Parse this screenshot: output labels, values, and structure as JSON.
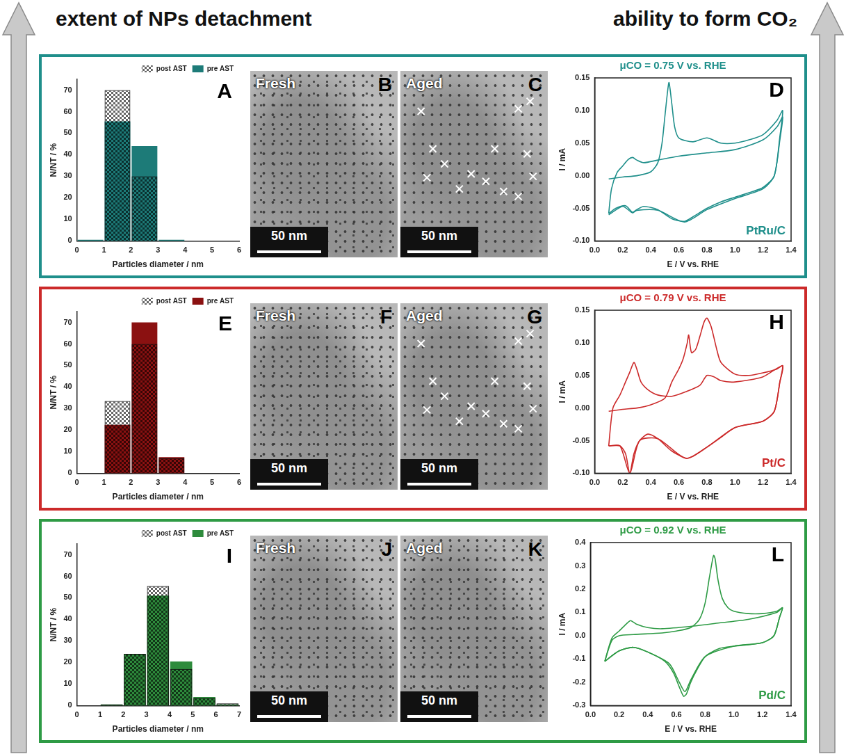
{
  "header": {
    "left": "extent of NPs detachment",
    "right": "ability to form CO₂"
  },
  "chart_data": [
    {
      "type": "histogram",
      "panel_letter": "A",
      "bins": [
        0,
        1,
        2,
        3,
        4,
        5,
        6
      ],
      "series": [
        {
          "name": "pre AST",
          "color": "#1d7b78",
          "values": [
            0.5,
            55.5,
            44,
            0.5,
            0,
            0
          ]
        },
        {
          "name": "post AST",
          "color": "#000000",
          "values": [
            0,
            70,
            30,
            0,
            0,
            0
          ]
        }
      ],
      "xlabel": "Particles diameter / nm",
      "ylabel": "N/NT / %",
      "xlim": [
        0,
        6
      ],
      "xticks": [
        0,
        1,
        2,
        3,
        4,
        5,
        6
      ],
      "ylim": [
        0,
        75
      ],
      "yticks": [
        0,
        10,
        20,
        30,
        40,
        50,
        60,
        70
      ],
      "grid": false,
      "legend": "top right"
    },
    {
      "type": "line",
      "panel_letter": "D",
      "title": "μCO = 0.75 V vs. RHE",
      "annotations": [
        "PtRu/C"
      ],
      "xlabel": "E / V vs. RHE",
      "ylabel": "I / mA",
      "xlim": [
        0,
        1.4
      ],
      "xticks": [
        {
          "value": 0,
          "label": "0.0"
        },
        0.2,
        0.4,
        0.6,
        0.8,
        {
          "value": 1,
          "label": "1.0"
        },
        1.2,
        1.4
      ],
      "ylim": [
        -0.1,
        0.15
      ],
      "yticks": [
        {
          "value": -0.1,
          "label": "-0.10"
        },
        -0.05,
        {
          "value": 0,
          "label": "0.00"
        },
        0.05,
        {
          "value": 0.1,
          "label": "0.10"
        },
        0.15
      ],
      "grid": false,
      "series": [
        {
          "color": "#1f8f8b",
          "x": [
            0.1,
            0.2,
            0.3,
            0.4,
            0.45,
            0.48,
            0.5,
            0.52,
            0.53,
            0.55,
            0.57,
            0.6,
            0.7,
            0.8,
            0.9,
            1.0,
            1.1,
            1.2,
            1.3,
            1.34,
            1.32,
            1.28,
            1.2,
            1.1,
            1.0,
            0.9,
            0.8,
            0.7,
            0.64,
            0.55,
            0.45,
            0.35,
            0.3,
            0.27,
            0.22,
            0.15,
            0.1
          ],
          "values": [
            -0.005,
            -0.002,
            0.0,
            0.006,
            0.02,
            0.05,
            0.09,
            0.13,
            0.143,
            0.11,
            0.075,
            0.058,
            0.052,
            0.058,
            0.05,
            0.05,
            0.055,
            0.063,
            0.085,
            0.1,
            0.06,
            0.0,
            -0.018,
            -0.026,
            -0.033,
            -0.04,
            -0.05,
            -0.063,
            -0.07,
            -0.066,
            -0.052,
            -0.047,
            -0.052,
            -0.056,
            -0.046,
            -0.05,
            -0.058
          ]
        },
        {
          "color": "#1f8f8b",
          "x": [
            0.1,
            0.12,
            0.16,
            0.2,
            0.24,
            0.27,
            0.3,
            0.35,
            0.45,
            0.6,
            0.8,
            1.0,
            1.2,
            1.3,
            1.34,
            1.32,
            1.28,
            1.2,
            1.0,
            0.8,
            0.64,
            0.45,
            0.3,
            0.27,
            0.2,
            0.1
          ],
          "values": [
            -0.058,
            -0.02,
            0.005,
            0.015,
            0.025,
            0.028,
            0.024,
            0.02,
            0.024,
            0.03,
            0.035,
            0.04,
            0.055,
            0.075,
            0.09,
            0.055,
            0.0,
            -0.02,
            -0.035,
            -0.052,
            -0.071,
            -0.053,
            -0.053,
            -0.057,
            -0.047,
            -0.06
          ]
        }
      ]
    },
    {
      "type": "histogram",
      "panel_letter": "E",
      "bins": [
        0,
        1,
        2,
        3,
        4,
        5,
        6
      ],
      "series": [
        {
          "name": "pre AST",
          "color": "#8b1111",
          "values": [
            0,
            22.5,
            70,
            7.5,
            0,
            0
          ]
        },
        {
          "name": "post AST",
          "color": "#000000",
          "values": [
            0,
            33.5,
            60,
            7,
            0,
            0
          ]
        }
      ],
      "xlabel": "Particles diameter / nm",
      "ylabel": "N/NT / %",
      "xlim": [
        0,
        6
      ],
      "xticks": [
        0,
        1,
        2,
        3,
        4,
        5,
        6
      ],
      "ylim": [
        0,
        75
      ],
      "yticks": [
        0,
        10,
        20,
        30,
        40,
        50,
        60,
        70
      ],
      "grid": false,
      "legend": "top right"
    },
    {
      "type": "line",
      "panel_letter": "H",
      "title": "μCO = 0.79 V vs. RHE",
      "annotations": [
        "Pt/C"
      ],
      "xlabel": "E / V vs. RHE",
      "ylabel": "I / mA",
      "xlim": [
        0,
        1.4
      ],
      "xticks": [
        {
          "value": 0,
          "label": "0.0"
        },
        0.2,
        0.4,
        0.6,
        0.8,
        {
          "value": 1,
          "label": "1.0"
        },
        1.2,
        1.4
      ],
      "ylim": [
        -0.1,
        0.15
      ],
      "yticks": [
        {
          "value": -0.1,
          "label": "-0.10"
        },
        -0.05,
        {
          "value": 0,
          "label": "0.00"
        },
        0.05,
        {
          "value": 0.1,
          "label": "0.10"
        },
        0.15
      ],
      "grid": false,
      "series": [
        {
          "color": "#cc2a2a",
          "x": [
            0.1,
            0.2,
            0.3,
            0.4,
            0.5,
            0.55,
            0.6,
            0.63,
            0.66,
            0.67,
            0.69,
            0.72,
            0.75,
            0.78,
            0.8,
            0.83,
            0.87,
            0.9,
            1.0,
            1.1,
            1.2,
            1.3,
            1.34,
            1.32,
            1.28,
            1.2,
            1.0,
            0.9,
            0.8,
            0.7,
            0.65,
            0.55,
            0.45,
            0.38,
            0.32,
            0.28,
            0.25,
            0.22,
            0.18,
            0.1
          ],
          "values": [
            -0.005,
            -0.002,
            0.0,
            0.005,
            0.015,
            0.04,
            0.06,
            0.075,
            0.1,
            0.112,
            0.085,
            0.09,
            0.11,
            0.132,
            0.138,
            0.125,
            0.09,
            0.07,
            0.052,
            0.05,
            0.054,
            0.06,
            0.065,
            0.04,
            -0.005,
            -0.02,
            -0.03,
            -0.045,
            -0.06,
            -0.074,
            -0.077,
            -0.066,
            -0.047,
            -0.04,
            -0.05,
            -0.07,
            -0.1,
            -0.07,
            -0.058,
            -0.058
          ]
        },
        {
          "color": "#cc2a2a",
          "x": [
            0.1,
            0.13,
            0.18,
            0.22,
            0.25,
            0.28,
            0.3,
            0.33,
            0.38,
            0.45,
            0.55,
            0.65,
            0.75,
            0.8,
            0.85,
            0.9,
            1.0,
            1.2,
            1.34,
            1.32,
            1.28,
            1.2,
            1.0,
            0.8,
            0.65,
            0.45,
            0.32,
            0.25,
            0.18,
            0.1
          ],
          "values": [
            -0.058,
            0.0,
            0.02,
            0.04,
            0.055,
            0.07,
            0.06,
            0.04,
            0.028,
            0.02,
            0.018,
            0.025,
            0.035,
            0.05,
            0.048,
            0.042,
            0.04,
            0.048,
            0.065,
            0.04,
            -0.005,
            -0.02,
            -0.03,
            -0.06,
            -0.077,
            -0.047,
            -0.05,
            -0.1,
            -0.058,
            -0.058
          ]
        }
      ]
    },
    {
      "type": "histogram",
      "panel_letter": "I",
      "bins": [
        0,
        1,
        2,
        3,
        4,
        5,
        6,
        7
      ],
      "series": [
        {
          "name": "pre AST",
          "color": "#2e8b3c",
          "values": [
            0,
            0.5,
            24,
            51,
            20.5,
            4,
            0.5
          ]
        },
        {
          "name": "post AST",
          "color": "#000000",
          "values": [
            0,
            0.5,
            24,
            55.5,
            17,
            3.5,
            1
          ]
        }
      ],
      "xlabel": "Particles diameter / nm",
      "ylabel": "N/NT / %",
      "xlim": [
        0,
        7
      ],
      "xticks": [
        0,
        1,
        2,
        3,
        4,
        5,
        6,
        7
      ],
      "ylim": [
        0,
        75
      ],
      "yticks": [
        0,
        10,
        20,
        30,
        40,
        50,
        60,
        70
      ],
      "grid": false,
      "legend": "top right"
    },
    {
      "type": "line",
      "panel_letter": "L",
      "title": "μCO = 0.92 V vs. RHE",
      "annotations": [
        "Pd/C"
      ],
      "xlabel": "E / V vs. RHE",
      "ylabel": "I / mA",
      "xlim": [
        0,
        1.4
      ],
      "xticks": [
        {
          "value": 0,
          "label": "0.0"
        },
        0.2,
        0.4,
        0.6,
        0.8,
        {
          "value": 1,
          "label": "1.0"
        },
        1.2,
        1.4
      ],
      "ylim": [
        -0.3,
        0.4
      ],
      "yticks": [
        -0.3,
        -0.2,
        -0.1,
        {
          "value": 0,
          "label": "0.0"
        },
        0.1,
        0.2,
        0.3,
        0.4
      ],
      "grid": false,
      "series": [
        {
          "color": "#2e9b45",
          "x": [
            0.1,
            0.15,
            0.2,
            0.3,
            0.5,
            0.6,
            0.7,
            0.76,
            0.8,
            0.83,
            0.85,
            0.86,
            0.87,
            0.89,
            0.92,
            0.96,
            1.0,
            1.1,
            1.2,
            1.3,
            1.34,
            1.32,
            1.28,
            1.2,
            1.0,
            0.9,
            0.8,
            0.74,
            0.7,
            0.67,
            0.65,
            0.62,
            0.58,
            0.52,
            0.4,
            0.3,
            0.2,
            0.1
          ],
          "values": [
            -0.11,
            -0.02,
            0.0,
            0.005,
            0.012,
            0.02,
            0.035,
            0.07,
            0.14,
            0.25,
            0.32,
            0.345,
            0.33,
            0.24,
            0.16,
            0.12,
            0.105,
            0.095,
            0.095,
            0.105,
            0.12,
            0.08,
            0.0,
            -0.03,
            -0.045,
            -0.055,
            -0.09,
            -0.15,
            -0.2,
            -0.25,
            -0.26,
            -0.22,
            -0.16,
            -0.11,
            -0.07,
            -0.05,
            -0.065,
            -0.11
          ]
        },
        {
          "color": "#2e9b45",
          "x": [
            0.1,
            0.15,
            0.2,
            0.25,
            0.28,
            0.32,
            0.4,
            0.5,
            0.7,
            0.9,
            1.1,
            1.3,
            1.34,
            1.32,
            1.28,
            1.2,
            1.0,
            0.8,
            0.7,
            0.66,
            0.62,
            0.55,
            0.4,
            0.3,
            0.2,
            0.1
          ],
          "values": [
            -0.11,
            -0.01,
            0.02,
            0.05,
            0.065,
            0.05,
            0.035,
            0.03,
            0.04,
            0.055,
            0.07,
            0.1,
            0.12,
            0.08,
            0.0,
            -0.03,
            -0.045,
            -0.09,
            -0.19,
            -0.24,
            -0.2,
            -0.12,
            -0.07,
            -0.05,
            -0.065,
            -0.11
          ]
        }
      ]
    }
  ],
  "images": [
    {
      "panel_letter": "B",
      "label": "Fresh",
      "scale_bar": "50 nm"
    },
    {
      "panel_letter": "C",
      "label": "Aged",
      "scale_bar": "50 nm"
    },
    {
      "panel_letter": "F",
      "label": "Fresh",
      "scale_bar": "50 nm"
    },
    {
      "panel_letter": "G",
      "label": "Aged",
      "scale_bar": "50 nm"
    },
    {
      "panel_letter": "J",
      "label": "Fresh",
      "scale_bar": "50 nm"
    },
    {
      "panel_letter": "K",
      "label": "Aged",
      "scale_bar": "50 nm"
    }
  ]
}
